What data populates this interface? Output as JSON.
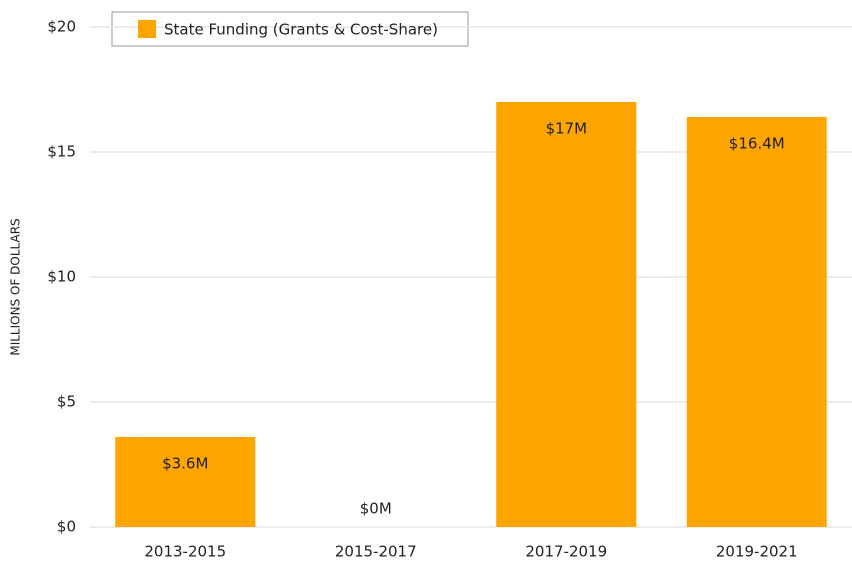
{
  "chart_data": {
    "type": "bar",
    "y_label": "MILLIONS OF DOLLARS",
    "categories": [
      "2013-2015",
      "2015-2017",
      "2017-2019",
      "2019-2021"
    ],
    "series": [
      {
        "name": "State Funding (Grants & Cost-Share)",
        "color": "#ffa500",
        "values": [
          3.6,
          0,
          17,
          16.4
        ],
        "value_labels": [
          "$3.6M",
          "$0M",
          "$17M",
          "$16.4M"
        ]
      }
    ],
    "ylim": [
      0,
      20
    ],
    "yticks": [
      {
        "value": 0,
        "label": "$0"
      },
      {
        "value": 5,
        "label": "$5"
      },
      {
        "value": 10,
        "label": "$10"
      },
      {
        "value": 15,
        "label": "$15"
      },
      {
        "value": 20,
        "label": "$20"
      }
    ],
    "grid": true,
    "legend": "top-left"
  }
}
